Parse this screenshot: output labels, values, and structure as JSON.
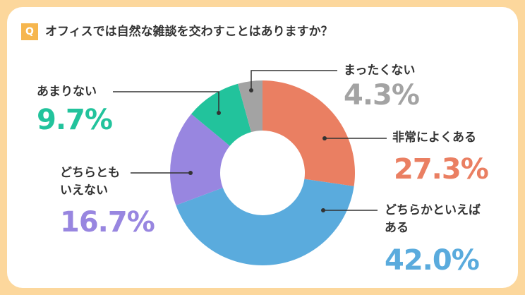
{
  "chart_data": {
    "type": "donut",
    "badge": "Q",
    "title": "オフィスでは自然な雑談を交わすことはありますか？",
    "categories": [
      "非常によくある",
      "どちらかといえば\nある",
      "どちらとも\nいえない",
      "あまりない",
      "まったくない"
    ],
    "values": [
      27.3,
      42.0,
      16.7,
      9.7,
      4.3
    ],
    "value_labels": [
      "27.3%",
      "42.0%",
      "16.7%",
      "9.7%",
      "4.3%"
    ],
    "colors": [
      "#ea7f62",
      "#5aabdd",
      "#9886e0",
      "#22c39c",
      "#a3a3a3"
    ]
  }
}
